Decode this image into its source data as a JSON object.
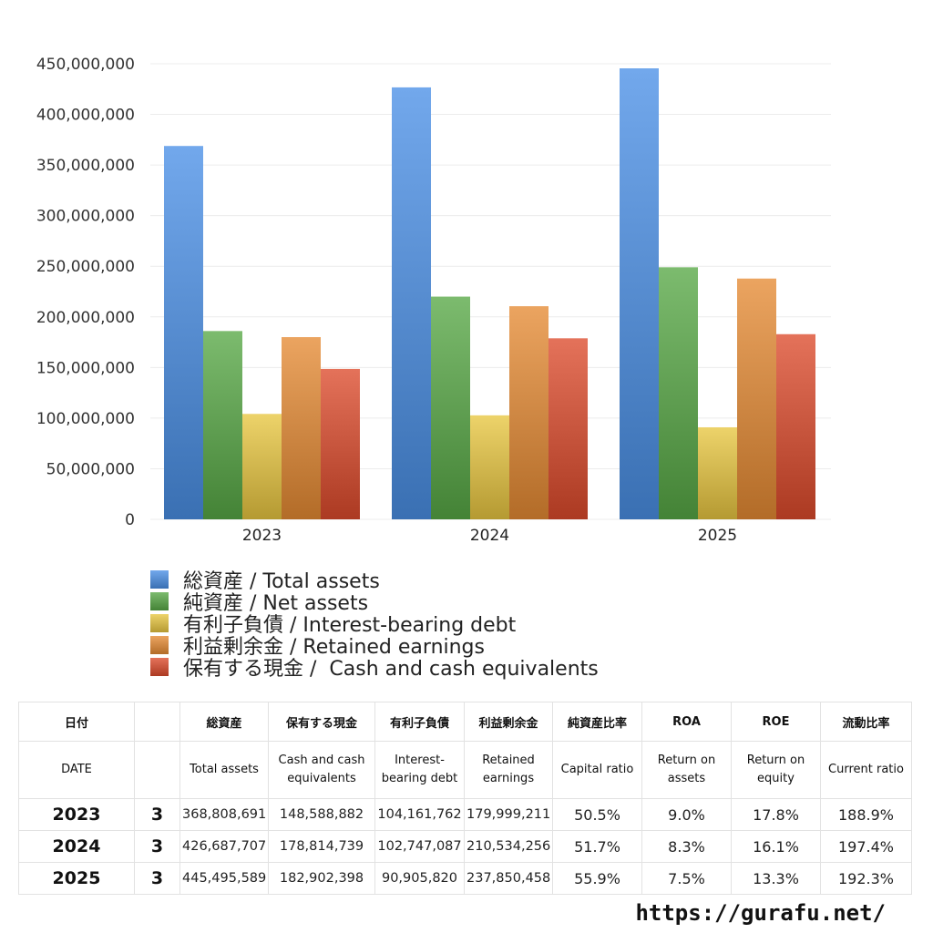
{
  "chart_data": {
    "type": "bar",
    "categories": [
      "2023",
      "2024",
      "2025"
    ],
    "ylim": [
      0,
      450000000
    ],
    "yticks": [
      "0",
      "50,000,000",
      "100,000,000",
      "150,000,000",
      "200,000,000",
      "250,000,000",
      "300,000,000",
      "350,000,000",
      "400,000,000",
      "450,000,000"
    ],
    "grid": true,
    "legend_position": "bottom-left",
    "series": [
      {
        "name": "総資産 / Total assets",
        "color": "#4a8fe6",
        "values": [
          368808691,
          426687707,
          445495589
        ]
      },
      {
        "name": "純資産 / Net assets",
        "color": "#57a845",
        "values": [
          186000000,
          220000000,
          249000000
        ]
      },
      {
        "name": "有利子負債 / Interest-bearing debt",
        "color": "#e8c640",
        "values": [
          104161762,
          102747087,
          90905820
        ]
      },
      {
        "name": "利益剰余金 / Retained earnings",
        "color": "#e58a33",
        "values": [
          179999211,
          210534256,
          237850458
        ]
      },
      {
        "name": "保有する現金 /  Cash and cash equivalents",
        "color": "#dc4a2c",
        "values": [
          148588882,
          178814739,
          182902398
        ]
      }
    ]
  },
  "table": {
    "header_jp": [
      "日付",
      "",
      "総資産",
      "保有する現金",
      "有利子負債",
      "利益剰余金",
      "純資産比率",
      "ROA",
      "ROE",
      "流動比率"
    ],
    "header_en": [
      "DATE",
      "",
      "Total assets",
      "Cash and cash equivalents",
      "Interest-bearing debt",
      "Retained earnings",
      "Capital ratio",
      "Return on assets",
      "Return on equity",
      "Current ratio"
    ],
    "rows": [
      [
        "2023",
        "3",
        "368,808,691",
        "148,588,882",
        "104,161,762",
        "179,999,211",
        "50.5%",
        "9.0%",
        "17.8%",
        "188.9%"
      ],
      [
        "2024",
        "3",
        "426,687,707",
        "178,814,739",
        "102,747,087",
        "210,534,256",
        "51.7%",
        "8.3%",
        "16.1%",
        "197.4%"
      ],
      [
        "2025",
        "3",
        "445,495,589",
        "182,902,398",
        "90,905,820",
        "237,850,458",
        "55.9%",
        "7.5%",
        "13.3%",
        "192.3%"
      ]
    ]
  },
  "site_url": "https://gurafu.net/"
}
